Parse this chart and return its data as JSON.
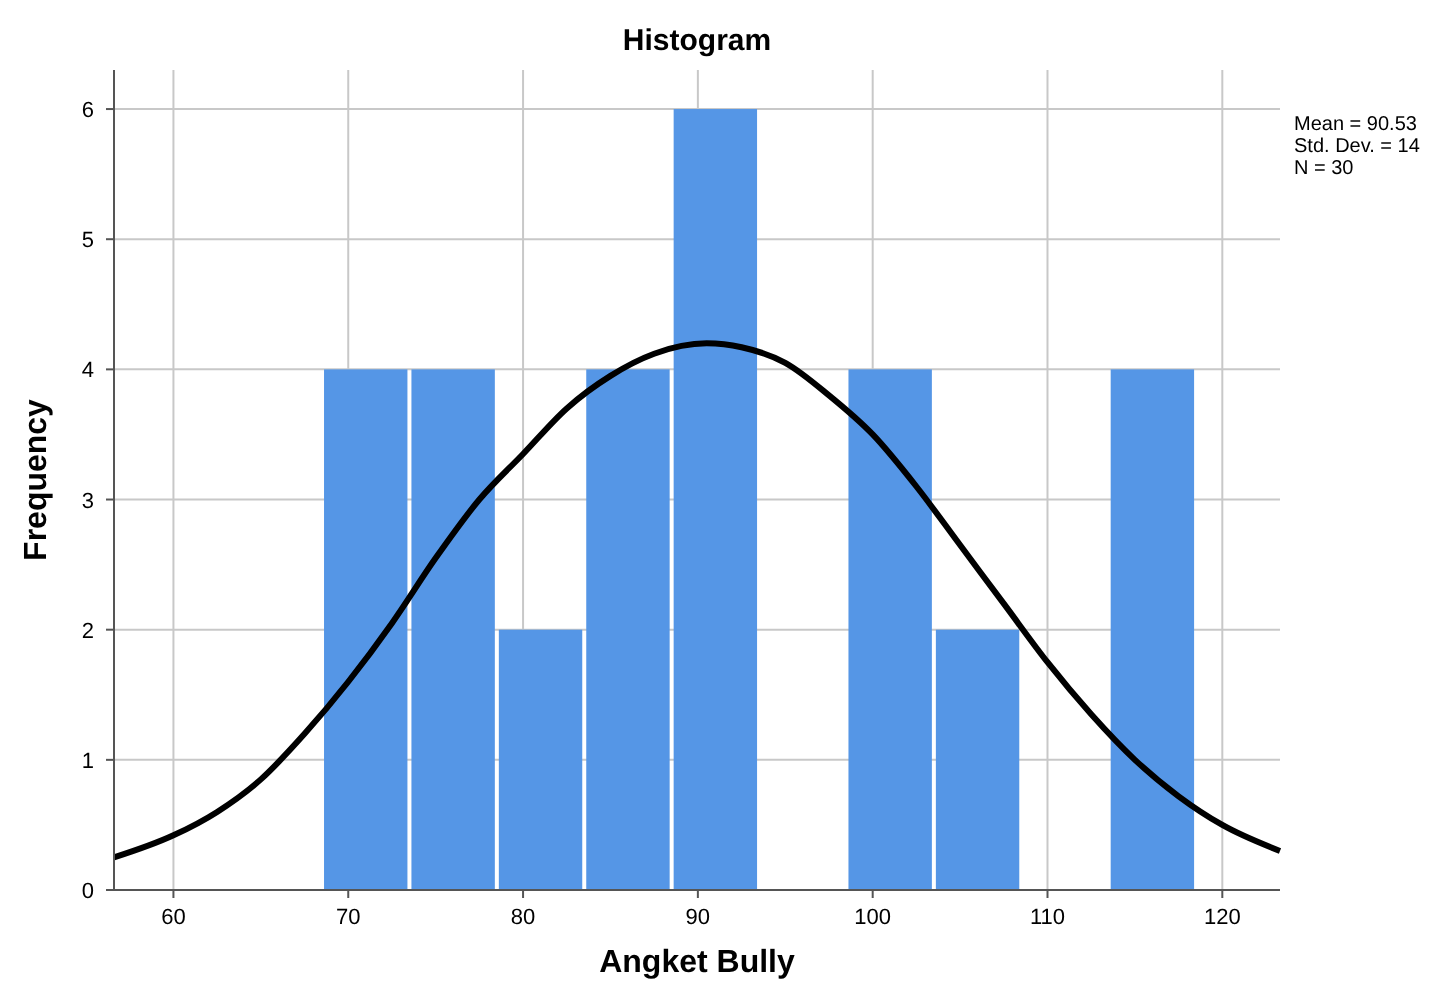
{
  "chart_data": {
    "type": "histogram",
    "title": "Histogram",
    "xlabel": "Angket Bully",
    "ylabel": "Frequency",
    "bins": [
      68.5,
      73.5,
      78.5,
      83.5,
      88.5,
      93.5,
      98.5,
      103.5,
      108.5,
      113.5,
      118.5
    ],
    "values": [
      4,
      4,
      2,
      4,
      6,
      0,
      4,
      2,
      0,
      4
    ],
    "color": "#5596e6",
    "series": [
      {
        "type": "line",
        "color": "#000000",
        "x": [
          56.6,
          60,
          62.5,
          65,
          67.5,
          70,
          72.5,
          75,
          77.5,
          80,
          82.5,
          85,
          87.5,
          90.5,
          92.5,
          95,
          97.5,
          100,
          102.5,
          105,
          107.5,
          110,
          112.5,
          115,
          117.5,
          120,
          123.3
        ],
        "values": [
          0.25,
          0.42,
          0.6,
          0.85,
          1.2,
          1.6,
          2.05,
          2.55,
          3.0,
          3.35,
          3.7,
          3.95,
          4.12,
          4.2,
          4.17,
          4.05,
          3.8,
          3.5,
          3.1,
          2.65,
          2.2,
          1.75,
          1.35,
          1.0,
          0.72,
          0.5,
          0.3
        ]
      }
    ],
    "xlim": [
      56.6,
      123.3
    ],
    "xticks": [
      60,
      70,
      80,
      90,
      100,
      110,
      120
    ],
    "ylim": [
      0,
      6.3
    ],
    "yticks": [
      0,
      1,
      2,
      3,
      4,
      5,
      6
    ],
    "grid": true,
    "annotations": [
      "Mean = 90.53",
      "Std. Dev. = 14",
      "N = 30"
    ]
  }
}
